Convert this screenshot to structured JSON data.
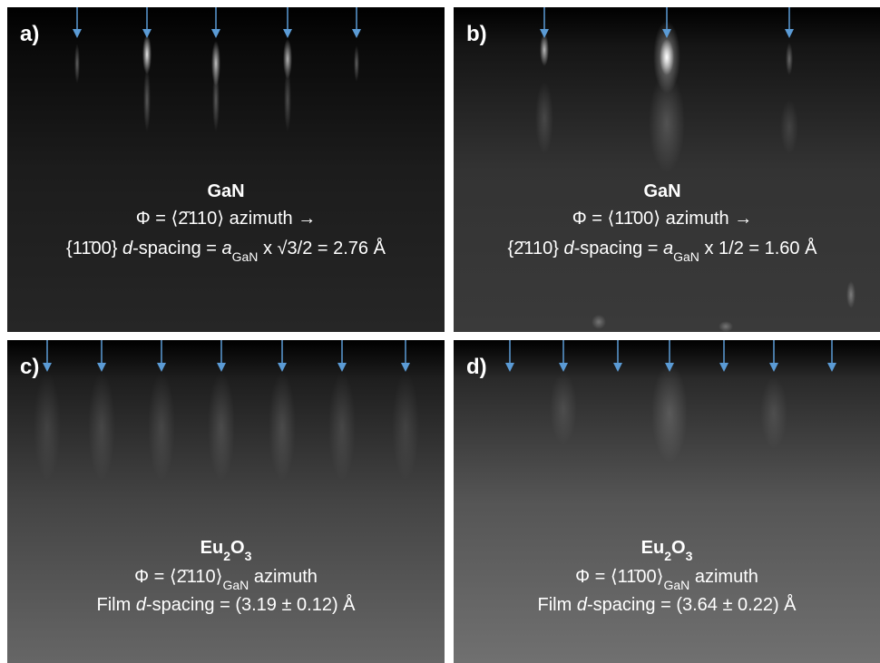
{
  "panels": [
    {
      "label": "a)",
      "title": [
        "GaN"
      ],
      "line1": [
        "Φ = ⟨2̄110⟩ azimuth →"
      ],
      "line2": [
        "{11̄00} ",
        "d",
        "-spacing = ",
        "a",
        "GaN",
        " x √3/2 = 2.76 Å"
      ]
    },
    {
      "label": "b)",
      "title": [
        "GaN"
      ],
      "line1": [
        "Φ = ⟨11̄00⟩ azimuth →"
      ],
      "line2": [
        "{2̄110} ",
        "d",
        "-spacing = ",
        "a",
        "GaN",
        " x 1/2 = 1.60 Å"
      ]
    },
    {
      "label": "c)",
      "title": [
        "Eu",
        "2",
        "O",
        "3"
      ],
      "line1": [
        "Φ = ⟨2̄110⟩",
        "GaN",
        " azimuth"
      ],
      "line2": [
        "Film ",
        "d",
        "-spacing = (3.19 ± 0.12) Å"
      ]
    },
    {
      "label": "d)",
      "title": [
        "Eu",
        "2",
        "O",
        "3"
      ],
      "line1": [
        "Φ = ⟨11̄00⟩",
        "GaN",
        " azimuth"
      ],
      "line2": [
        "Film ",
        "d",
        "-spacing = (3.64 ± 0.22) Å"
      ]
    }
  ]
}
